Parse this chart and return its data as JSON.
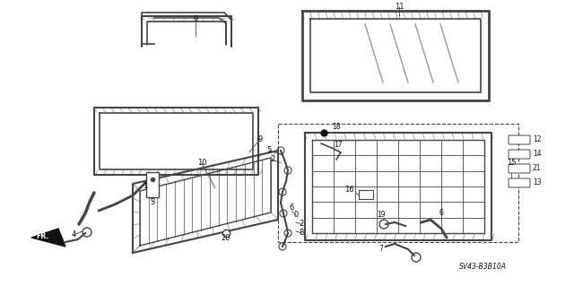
{
  "bg_color": "#ffffff",
  "line_color": "#444444",
  "dark_color": "#111111",
  "fig_width": 6.4,
  "fig_height": 3.19,
  "dpi": 100,
  "diagram_code": "SV43-B3B10A"
}
